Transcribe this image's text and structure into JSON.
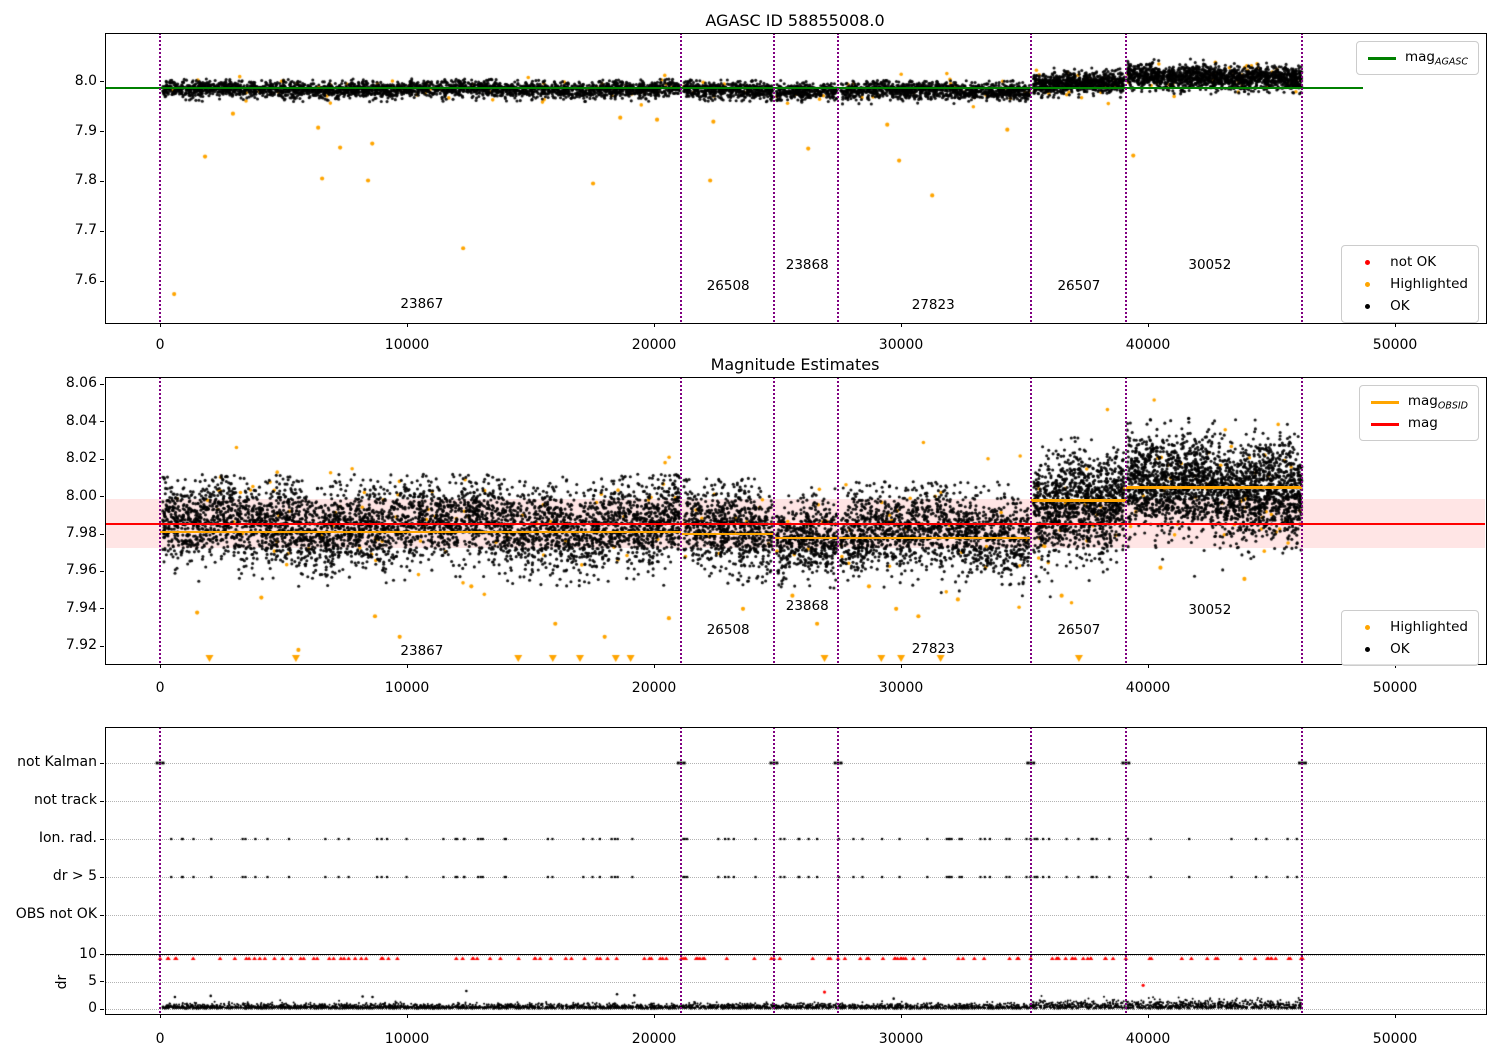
{
  "figure_title": "AGASC ID 58855008.0",
  "chart_data": [
    {
      "id": "mag-vs-time",
      "type": "scatter",
      "title": "AGASC ID 58855008.0",
      "xlim": [
        -2230,
        53640
      ],
      "ylim": [
        7.518,
        8.098
      ],
      "xtick_values": [
        0,
        10000,
        20000,
        30000,
        40000,
        50000
      ],
      "xtick_labels": [
        "0",
        "10000",
        "20000",
        "30000",
        "40000",
        "50000"
      ],
      "ytick_values": [
        8.0,
        7.9,
        7.8,
        7.7,
        7.6
      ],
      "ytick_labels": [
        "8.0",
        "7.9",
        "7.8",
        "7.7",
        "7.6"
      ],
      "grid": false,
      "agasc_mag": 7.988,
      "agasc_line_x": [
        -2230,
        48700
      ],
      "line_color": "#008000",
      "boundaries": [
        0,
        21100,
        24850,
        27450,
        35250,
        39100,
        46250
      ],
      "boundary_color": "#800080",
      "legend_line": {
        "label_main": "mag",
        "label_sub": "AGASC",
        "color": "#008000"
      },
      "legend_markers": [
        {
          "label": "not OK",
          "color": "#ff0000"
        },
        {
          "label": "Highlighted",
          "color": "#ffa500"
        },
        {
          "label": "OK",
          "color": "#000000"
        }
      ],
      "obsid_labels": [
        {
          "id": "23867",
          "x": 10600,
          "y": 7.552
        },
        {
          "id": "26508",
          "x": 23000,
          "y": 7.588
        },
        {
          "id": "23868",
          "x": 26200,
          "y": 7.63
        },
        {
          "id": "27823",
          "x": 31300,
          "y": 7.551
        },
        {
          "id": "26507",
          "x": 37200,
          "y": 7.588
        },
        {
          "id": "30052",
          "x": 42500,
          "y": 7.63
        }
      ],
      "black_segments": [
        {
          "obsid": "23867",
          "x0": 100,
          "x1": 21050,
          "n": 2600,
          "center": 7.985,
          "sd": 0.0085,
          "clip": [
            7.96,
            8.006
          ]
        },
        {
          "obsid": "26508",
          "x0": 21200,
          "x1": 24800,
          "n": 480,
          "center": 7.983,
          "sd": 0.0085,
          "clip": [
            7.958,
            8.004
          ]
        },
        {
          "obsid": "23868",
          "x0": 24950,
          "x1": 27400,
          "n": 320,
          "center": 7.982,
          "sd": 0.0085,
          "clip": [
            7.958,
            8.003
          ]
        },
        {
          "obsid": "27823",
          "x0": 27550,
          "x1": 35200,
          "n": 1000,
          "center": 7.981,
          "sd": 0.009,
          "clip": [
            7.955,
            8.003
          ]
        },
        {
          "obsid": "26507",
          "x0": 35350,
          "x1": 39050,
          "n": 750,
          "center": 7.998,
          "sd": 0.011,
          "clip": [
            7.968,
            8.028
          ]
        },
        {
          "obsid": "30052",
          "x0": 39150,
          "x1": 46230,
          "n": 1500,
          "center": 8.009,
          "sd": 0.012,
          "clip": [
            7.975,
            8.046
          ]
        }
      ],
      "orange_near_band_fraction": 0.025,
      "orange_outliers": [
        [
          570,
          7.574
        ],
        [
          1820,
          7.85
        ],
        [
          2950,
          7.936
        ],
        [
          6400,
          7.908
        ],
        [
          6560,
          7.806
        ],
        [
          7290,
          7.868
        ],
        [
          8420,
          7.802
        ],
        [
          8590,
          7.876
        ],
        [
          12270,
          7.666
        ],
        [
          17530,
          7.796
        ],
        [
          18630,
          7.928
        ],
        [
          20120,
          7.924
        ],
        [
          22270,
          7.802
        ],
        [
          22400,
          7.92
        ],
        [
          26240,
          7.866
        ],
        [
          29440,
          7.914
        ],
        [
          29920,
          7.842
        ],
        [
          31260,
          7.772
        ],
        [
          34300,
          7.904
        ],
        [
          39400,
          7.852
        ]
      ]
    },
    {
      "id": "magnitude-estimates",
      "type": "scatter",
      "title": "Magnitude Estimates",
      "xlim": [
        -2230,
        53640
      ],
      "ylim": [
        7.911,
        8.064
      ],
      "xtick_values": [
        0,
        10000,
        20000,
        30000,
        40000,
        50000
      ],
      "xtick_labels": [
        "0",
        "10000",
        "20000",
        "30000",
        "40000",
        "50000"
      ],
      "ytick_values": [
        8.06,
        8.04,
        8.02,
        8.0,
        7.98,
        7.96,
        7.94,
        7.92
      ],
      "ytick_labels": [
        "8.06",
        "8.04",
        "8.02",
        "8.00",
        "7.98",
        "7.96",
        "7.94",
        "7.92"
      ],
      "grid": false,
      "mag": 7.9855,
      "mag_color": "#ff0000",
      "mag_band": [
        7.9725,
        7.9985
      ],
      "mag_band_color": "rgba(255,0,0,0.10)",
      "obsid_color": "#ffa500",
      "boundaries": [
        0,
        21100,
        24850,
        27450,
        35250,
        39100,
        46250
      ],
      "boundary_color": "#800080",
      "legend_lines": [
        {
          "label_main": "mag",
          "label_sub": "OBSID",
          "color": "#ffa500"
        },
        {
          "label_main": "mag",
          "label_sub": "",
          "color": "#ff0000"
        }
      ],
      "legend_markers": [
        {
          "label": "Highlighted",
          "color": "#ffa500"
        },
        {
          "label": "OK",
          "color": "#000000"
        }
      ],
      "obsid_mag_segments": [
        {
          "obsid": "23867",
          "x0": 0,
          "x1": 21100,
          "mag": 7.981
        },
        {
          "obsid": "26508",
          "x0": 21100,
          "x1": 24850,
          "mag": 7.98
        },
        {
          "obsid": "23868",
          "x0": 24850,
          "x1": 27450,
          "mag": 7.978
        },
        {
          "obsid": "27823",
          "x0": 27450,
          "x1": 35250,
          "mag": 7.978
        },
        {
          "obsid": "26507",
          "x0": 35250,
          "x1": 39100,
          "mag": 7.998
        },
        {
          "obsid": "30052",
          "x0": 39100,
          "x1": 46250,
          "mag": 8.005
        }
      ],
      "black_segments": [
        {
          "obsid": "23867",
          "x0": 100,
          "x1": 21050,
          "n": 4200,
          "center": 7.985,
          "sd": 0.011,
          "clip": [
            7.952,
            8.012
          ]
        },
        {
          "obsid": "26508",
          "x0": 21200,
          "x1": 24800,
          "n": 750,
          "center": 7.982,
          "sd": 0.011,
          "clip": [
            7.95,
            8.01
          ]
        },
        {
          "obsid": "23868",
          "x0": 24950,
          "x1": 27400,
          "n": 500,
          "center": 7.98,
          "sd": 0.01,
          "clip": [
            7.95,
            8.006
          ]
        },
        {
          "obsid": "27823",
          "x0": 27550,
          "x1": 35200,
          "n": 1500,
          "center": 7.98,
          "sd": 0.011,
          "clip": [
            7.946,
            8.008
          ]
        },
        {
          "obsid": "26507",
          "x0": 35350,
          "x1": 39050,
          "n": 1150,
          "center": 7.997,
          "sd": 0.013,
          "clip": [
            7.944,
            8.032
          ]
        },
        {
          "obsid": "30052",
          "x0": 39150,
          "x1": 46230,
          "n": 2300,
          "center": 8.005,
          "sd": 0.013,
          "clip": [
            7.956,
            8.042
          ]
        }
      ],
      "orange_near_band_fraction": 0.02,
      "orange_low_outliers": [
        [
          1500,
          7.938
        ],
        [
          4100,
          7.946
        ],
        [
          5600,
          7.918
        ],
        [
          8700,
          7.936
        ],
        [
          9700,
          7.925
        ],
        [
          12600,
          7.952
        ],
        [
          16000,
          7.932
        ],
        [
          18000,
          7.925
        ],
        [
          20600,
          7.935
        ],
        [
          23600,
          7.94
        ],
        [
          25600,
          7.947
        ],
        [
          26600,
          7.932
        ],
        [
          28700,
          7.952
        ],
        [
          29800,
          7.94
        ],
        [
          30700,
          7.936
        ],
        [
          32300,
          7.945
        ],
        [
          36500,
          7.947
        ],
        [
          40500,
          7.962
        ],
        [
          43900,
          7.956
        ]
      ],
      "clipped_low_x": [
        2000,
        5500,
        14500,
        15900,
        17000,
        18450,
        19050,
        26900,
        29200,
        30000,
        31600,
        37200
      ],
      "obsid_labels": [
        {
          "id": "23867",
          "x": 10600,
          "y": 7.917
        },
        {
          "id": "26508",
          "x": 23000,
          "y": 7.928
        },
        {
          "id": "23868",
          "x": 26200,
          "y": 7.941
        },
        {
          "id": "27823",
          "x": 31300,
          "y": 7.918
        },
        {
          "id": "26507",
          "x": 37200,
          "y": 7.928
        },
        {
          "id": "30052",
          "x": 42500,
          "y": 7.939
        }
      ]
    },
    {
      "id": "flags-and-dr",
      "type": "scatter",
      "categories": [
        "not Kalman",
        "not track",
        "Ion. rad.",
        "dr > 5",
        "OBS not OK"
      ],
      "dr_axis_label": "dr",
      "dr_tick_values": [
        10,
        5,
        0
      ],
      "dr_tick_labels": [
        "10",
        "5",
        "0"
      ],
      "xtick_values": [
        0,
        10000,
        20000,
        30000,
        40000,
        50000
      ],
      "xtick_labels": [
        "0",
        "10000",
        "20000",
        "30000",
        "40000",
        "50000"
      ],
      "boundaries": [
        0,
        21100,
        24850,
        27450,
        35250,
        39100,
        46250
      ],
      "boundary_color": "#800080",
      "gridline_color": "#b3b3b3",
      "dr_clip_level": 10,
      "not_kalman_x": [
        0,
        21100,
        24850,
        27450,
        35250,
        39100,
        46250
      ],
      "not_track_x": [],
      "obs_not_ok_x": [],
      "ion_rad_scatter": {
        "n": 88,
        "x_range": [
          400,
          46100
        ]
      },
      "dr_gt5_scatter": {
        "same_as": "ion_rad"
      },
      "dr_red_clipped": {
        "n": 125,
        "x_range": [
          0,
          46250
        ],
        "color": "#ff0000"
      },
      "dr_black_band": {
        "n": 4200,
        "x_range": [
          100,
          46230
        ],
        "sd": 0.42,
        "boost_after_x": 35250,
        "boost_factor": 1.7
      },
      "dr_red_outliers": [
        [
          26900,
          3.1
        ],
        [
          39800,
          4.35
        ]
      ],
      "dr_black_outliers": [
        [
          600,
          2.2
        ],
        [
          2050,
          2.4
        ],
        [
          8200,
          2.3
        ],
        [
          8600,
          2.2
        ],
        [
          12400,
          3.3
        ],
        [
          18500,
          2.7
        ],
        [
          19200,
          2.5
        ],
        [
          29700,
          1.9
        ]
      ]
    }
  ]
}
